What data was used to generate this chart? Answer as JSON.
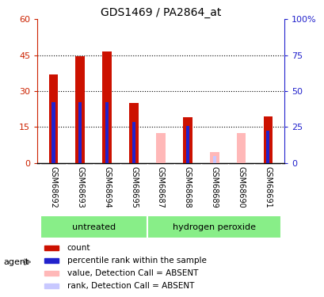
{
  "title": "GDS1469 / PA2864_at",
  "samples": [
    "GSM68692",
    "GSM68693",
    "GSM68694",
    "GSM68695",
    "GSM68687",
    "GSM68688",
    "GSM68689",
    "GSM68690",
    "GSM68691"
  ],
  "red_values": [
    37.0,
    44.5,
    46.5,
    25.0,
    0,
    19.0,
    0,
    0,
    19.5
  ],
  "blue_values": [
    25.5,
    25.5,
    25.5,
    17.0,
    0,
    15.5,
    0,
    0,
    13.5
  ],
  "pink_values": [
    0,
    0,
    0,
    0,
    12.5,
    0,
    4.5,
    12.5,
    0
  ],
  "lavender_values": [
    0,
    0,
    0,
    0,
    0,
    0,
    3.0,
    0,
    0
  ],
  "ylim_left": [
    0,
    60
  ],
  "ylim_right": [
    0,
    100
  ],
  "yticks_left": [
    0,
    15,
    30,
    45,
    60
  ],
  "yticks_right": [
    0,
    25,
    50,
    75,
    100
  ],
  "ytick_labels_left": [
    "0",
    "15",
    "30",
    "45",
    "60"
  ],
  "ytick_labels_right": [
    "0",
    "25",
    "50",
    "75",
    "100%"
  ],
  "bar_width": 0.35,
  "blue_bar_width": 0.12,
  "legend_items": [
    {
      "label": "count",
      "color": "#cc1100"
    },
    {
      "label": "percentile rank within the sample",
      "color": "#2222cc"
    },
    {
      "label": "value, Detection Call = ABSENT",
      "color": "#ffb8b8"
    },
    {
      "label": "rank, Detection Call = ABSENT",
      "color": "#c8c8ff"
    }
  ],
  "left_tick_color": "#cc2200",
  "right_tick_color": "#2222cc",
  "gray_bg": "#d4d4d4",
  "green_light": "#88ee88",
  "green_dark": "#44cc44",
  "agent_label": "agent",
  "group_defs": [
    [
      0,
      3,
      "untreated"
    ],
    [
      4,
      8,
      "hydrogen peroxide"
    ]
  ]
}
